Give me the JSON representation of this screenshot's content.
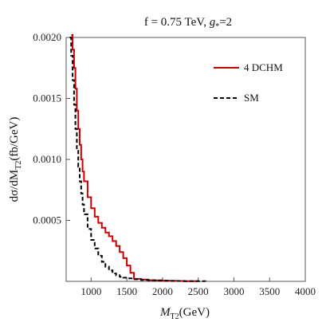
{
  "chart_data": {
    "type": "line",
    "title": "f = 0.75 TeV, g* = 2",
    "title_parts": {
      "lead": "f =",
      "value": "0.75",
      "unit": "TeV",
      "coupling_symbol": "g",
      "coupling_sub": "*",
      "coupling_eq": "=2"
    },
    "xlabel": "M_T2 (GeV)",
    "xlabel_parts": {
      "sym": "M",
      "sub": "T2",
      "unit": "(GeV)"
    },
    "ylabel": "dσ/dM_T2 (fb/GeV)",
    "ylabel_parts": {
      "pre": "dσ/dM",
      "sub": "T2",
      "unit": "(fb/GeV)"
    },
    "xlim": [
      650,
      4000
    ],
    "ylim": [
      0,
      0.002
    ],
    "x_ticks": [
      1000,
      1500,
      2000,
      2500,
      3000,
      3500,
      4000
    ],
    "x_tick_labels": [
      "1000",
      "1500",
      "2000",
      "2500",
      "3000",
      "3500",
      "4000"
    ],
    "y_ticks": [
      0.0005,
      0.001,
      0.0015,
      0.002
    ],
    "y_tick_labels": [
      "0.0005",
      "0.0010",
      "0.0015",
      "0.0020"
    ],
    "grid": false,
    "legend_position": "top-right",
    "series": [
      {
        "name": "4 DCHM",
        "color": "#cc0000",
        "style": "solid",
        "x": [
          720,
          740,
          760,
          780,
          800,
          820,
          840,
          860,
          880,
          900,
          950,
          1000,
          1050,
          1100,
          1150,
          1200,
          1250,
          1300,
          1350,
          1400,
          1450,
          1500,
          1550,
          1600,
          1700,
          1800,
          1900,
          2000,
          2100,
          2200,
          2300,
          2400,
          2500
        ],
        "y": [
          0.00202,
          0.0019,
          0.00175,
          0.00158,
          0.0014,
          0.00125,
          0.00112,
          0.001,
          0.0009,
          0.00082,
          0.00069,
          0.0006,
          0.00053,
          0.00048,
          0.00044,
          0.0004,
          0.00037,
          0.00033,
          0.00029,
          0.00024,
          0.00019,
          0.00013,
          7e-05,
          2e-05,
          1.5e-05,
          1e-05,
          8e-06,
          6e-06,
          4e-06,
          3e-06,
          2e-06,
          1e-06,
          5e-07
        ]
      },
      {
        "name": "SM",
        "color": "#000000",
        "style": "dashed",
        "x": [
          700,
          720,
          740,
          760,
          780,
          800,
          820,
          840,
          860,
          880,
          900,
          950,
          1000,
          1050,
          1100,
          1150,
          1200,
          1250,
          1300,
          1350,
          1400,
          1450,
          1500,
          1600,
          1700,
          1800,
          1900,
          2000,
          2100,
          2200,
          2300,
          2400,
          2500,
          2600
        ],
        "y": [
          0.002,
          0.00185,
          0.00165,
          0.00145,
          0.00125,
          0.00108,
          0.00094,
          0.00082,
          0.00072,
          0.00063,
          0.00055,
          0.00043,
          0.00034,
          0.00027,
          0.00021,
          0.00016,
          0.00012,
          9e-05,
          6.5e-05,
          5e-05,
          3.8e-05,
          3e-05,
          2.4e-05,
          1.7e-05,
          1.2e-05,
          9e-06,
          7e-06,
          5e-06,
          4e-06,
          3e-06,
          2e-06,
          1.5e-06,
          1e-06,
          5e-07
        ]
      }
    ]
  }
}
